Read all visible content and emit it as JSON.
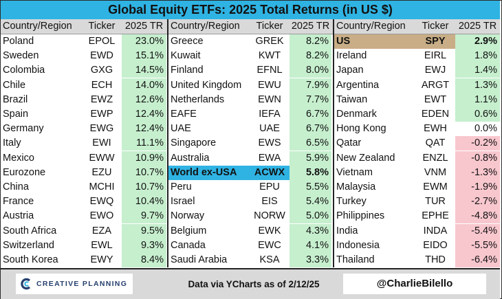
{
  "title": "Global Equity ETFs: 2025 Total Returns (in US $)",
  "headers": {
    "country": "Country/Region",
    "ticker": "Ticker",
    "return": "2025 TR"
  },
  "colors": {
    "title_bg": "#2fb3e3",
    "header_bg": "#d9d9d9",
    "positive": "#c6efce",
    "negative": "#f8c7ce",
    "us_highlight": "#c8ad86",
    "world_highlight": "#2fb3e3",
    "footer_bg": "#d9d9d9"
  },
  "footer": {
    "logo_icon": "creative-planning-c-logo",
    "logo_text": "CREATIVE PLANNING",
    "source": "Data via YCharts as of 2/12/25",
    "handle": "@CharlieBilello"
  },
  "chart_data": {
    "type": "table",
    "title": "Global Equity ETFs: 2025 Total Returns (in US $)",
    "columns": [
      "Country/Region",
      "Ticker",
      "2025 TR"
    ],
    "panels": [
      [
        {
          "country": "Poland",
          "ticker": "EPOL",
          "tr": 23.0,
          "display": "23.0%"
        },
        {
          "country": "Sweden",
          "ticker": "EWD",
          "tr": 15.1,
          "display": "15.1%"
        },
        {
          "country": "Colombia",
          "ticker": "GXG",
          "tr": 14.5,
          "display": "14.5%"
        },
        {
          "country": "Chile",
          "ticker": "ECH",
          "tr": 14.0,
          "display": "14.0%"
        },
        {
          "country": "Brazil",
          "ticker": "EWZ",
          "tr": 12.6,
          "display": "12.6%"
        },
        {
          "country": "Spain",
          "ticker": "EWP",
          "tr": 12.4,
          "display": "12.4%"
        },
        {
          "country": "Germany",
          "ticker": "EWG",
          "tr": 12.4,
          "display": "12.4%"
        },
        {
          "country": "Italy",
          "ticker": "EWI",
          "tr": 11.1,
          "display": "11.1%"
        },
        {
          "country": "Mexico",
          "ticker": "EWW",
          "tr": 10.9,
          "display": "10.9%"
        },
        {
          "country": "Eurozone",
          "ticker": "EZU",
          "tr": 10.7,
          "display": "10.7%"
        },
        {
          "country": "China",
          "ticker": "MCHI",
          "tr": 10.7,
          "display": "10.7%"
        },
        {
          "country": "France",
          "ticker": "EWQ",
          "tr": 10.4,
          "display": "10.4%"
        },
        {
          "country": "Austria",
          "ticker": "EWO",
          "tr": 9.7,
          "display": "9.7%"
        },
        {
          "country": "South Africa",
          "ticker": "EZA",
          "tr": 9.5,
          "display": "9.5%"
        },
        {
          "country": "Switzerland",
          "ticker": "EWL",
          "tr": 9.3,
          "display": "9.3%"
        },
        {
          "country": "South Korea",
          "ticker": "EWY",
          "tr": 8.4,
          "display": "8.4%"
        }
      ],
      [
        {
          "country": "Greece",
          "ticker": "GREK",
          "tr": 8.2,
          "display": "8.2%"
        },
        {
          "country": "Kuwait",
          "ticker": "KWT",
          "tr": 8.2,
          "display": "8.2%"
        },
        {
          "country": "Finland",
          "ticker": "EFNL",
          "tr": 8.0,
          "display": "8.0%"
        },
        {
          "country": "United Kingdom",
          "ticker": "EWU",
          "tr": 7.9,
          "display": "7.9%"
        },
        {
          "country": "Netherlands",
          "ticker": "EWN",
          "tr": 7.7,
          "display": "7.7%"
        },
        {
          "country": "EAFE",
          "ticker": "IEFA",
          "tr": 6.7,
          "display": "6.7%"
        },
        {
          "country": "UAE",
          "ticker": "UAE",
          "tr": 6.7,
          "display": "6.7%"
        },
        {
          "country": "Singapore",
          "ticker": "EWS",
          "tr": 6.5,
          "display": "6.5%"
        },
        {
          "country": "Australia",
          "ticker": "EWA",
          "tr": 5.9,
          "display": "5.9%"
        },
        {
          "country": "World ex-USA",
          "ticker": "ACWX",
          "tr": 5.8,
          "display": "5.8%",
          "highlight": "world"
        },
        {
          "country": "Peru",
          "ticker": "EPU",
          "tr": 5.5,
          "display": "5.5%"
        },
        {
          "country": "Israel",
          "ticker": "EIS",
          "tr": 5.4,
          "display": "5.4%"
        },
        {
          "country": "Norway",
          "ticker": "NORW",
          "tr": 5.0,
          "display": "5.0%"
        },
        {
          "country": "Belgium",
          "ticker": "EWK",
          "tr": 4.3,
          "display": "4.3%"
        },
        {
          "country": "Canada",
          "ticker": "EWC",
          "tr": 4.1,
          "display": "4.1%"
        },
        {
          "country": "Saudi Arabia",
          "ticker": "KSA",
          "tr": 3.3,
          "display": "3.3%"
        }
      ],
      [
        {
          "country": "US",
          "ticker": "SPY",
          "tr": 2.9,
          "display": "2.9%",
          "highlight": "us"
        },
        {
          "country": "Ireland",
          "ticker": "EIRL",
          "tr": 1.8,
          "display": "1.8%"
        },
        {
          "country": "Japan",
          "ticker": "EWJ",
          "tr": 1.4,
          "display": "1.4%"
        },
        {
          "country": "Argentina",
          "ticker": "ARGT",
          "tr": 1.3,
          "display": "1.3%"
        },
        {
          "country": "Taiwan",
          "ticker": "EWT",
          "tr": 1.1,
          "display": "1.1%"
        },
        {
          "country": "Denmark",
          "ticker": "EDEN",
          "tr": 0.6,
          "display": "0.6%"
        },
        {
          "country": "Hong Kong",
          "ticker": "EWH",
          "tr": 0.0,
          "display": "0.0%"
        },
        {
          "country": "Qatar",
          "ticker": "QAT",
          "tr": -0.2,
          "display": "-0.2%"
        },
        {
          "country": "New Zealand",
          "ticker": "ENZL",
          "tr": -0.8,
          "display": "-0.8%"
        },
        {
          "country": "Vietnam",
          "ticker": "VNM",
          "tr": -1.3,
          "display": "-1.3%"
        },
        {
          "country": "Malaysia",
          "ticker": "EWM",
          "tr": -1.9,
          "display": "-1.9%"
        },
        {
          "country": "Turkey",
          "ticker": "TUR",
          "tr": -2.7,
          "display": "-2.7%"
        },
        {
          "country": "Philippines",
          "ticker": "EPHE",
          "tr": -4.8,
          "display": "-4.8%"
        },
        {
          "country": "India",
          "ticker": "INDA",
          "tr": -5.4,
          "display": "-5.4%"
        },
        {
          "country": "Indonesia",
          "ticker": "EIDO",
          "tr": -5.5,
          "display": "-5.5%"
        },
        {
          "country": "Thailand",
          "ticker": "THD",
          "tr": -6.4,
          "display": "-6.4%"
        }
      ]
    ]
  }
}
